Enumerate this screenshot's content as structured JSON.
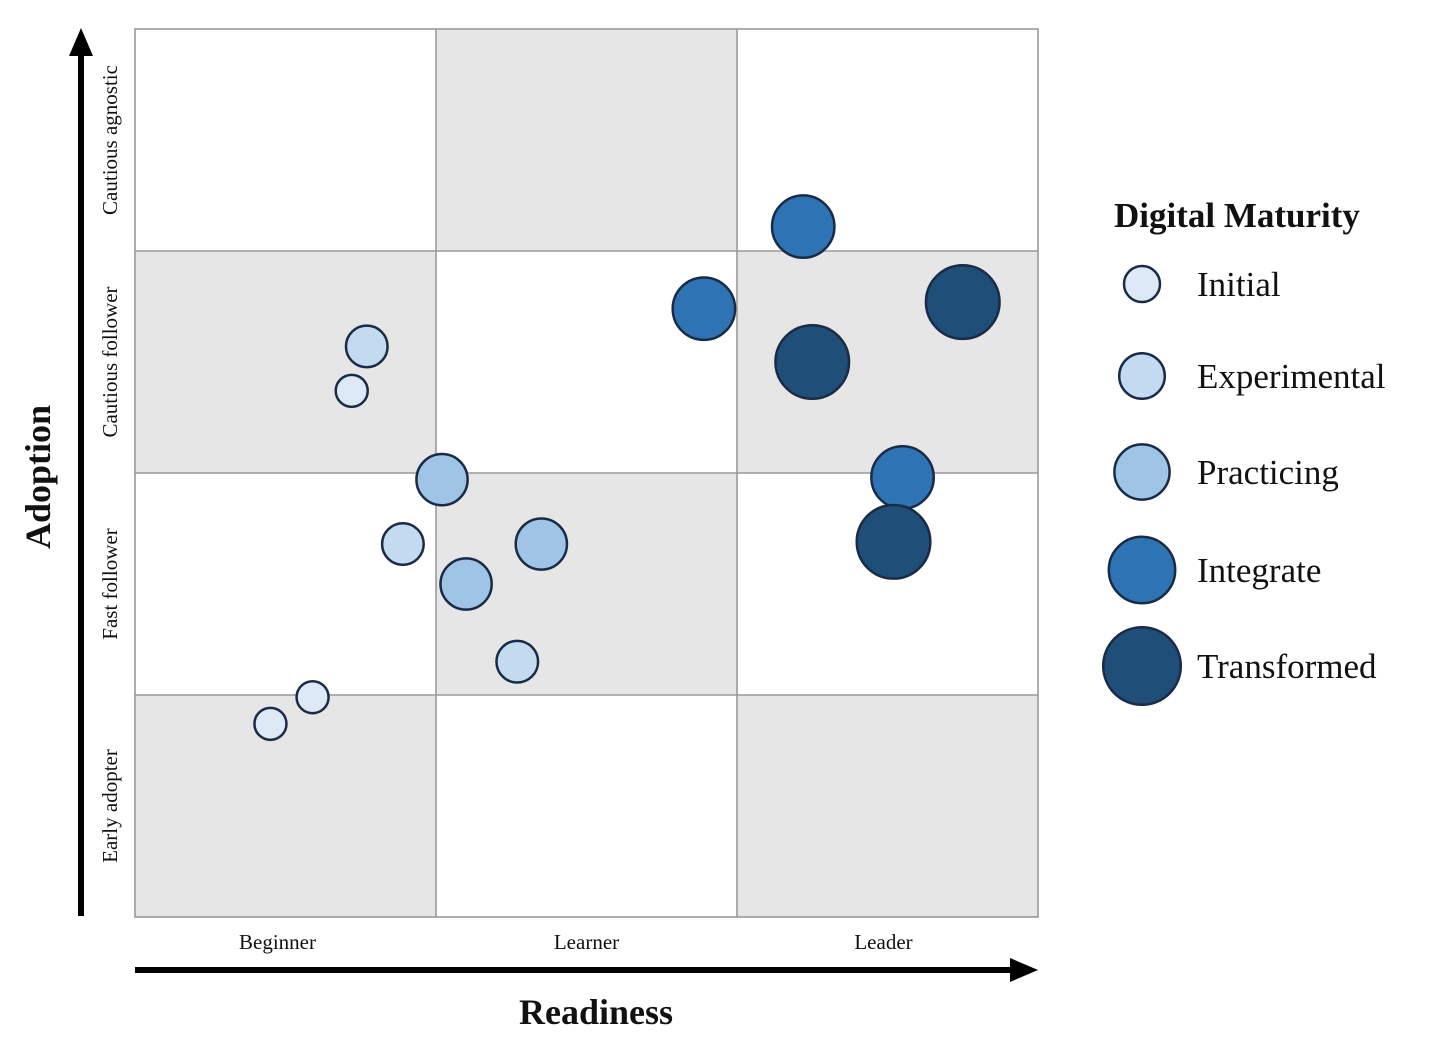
{
  "chart_data": {
    "type": "scatter",
    "subtype": "bubble-quadrant",
    "title": "",
    "xlabel": "Readiness",
    "ylabel": "Adoption",
    "x_categories": [
      "Beginner",
      "Learner",
      "Leader"
    ],
    "y_categories": [
      "Early adopter",
      "Fast follower",
      "Cautious follower",
      "Cautious agnostic"
    ],
    "xlim": [
      0,
      3
    ],
    "ylim": [
      0,
      4
    ],
    "grid": true,
    "cell_shading": {
      "shaded_color": "#e6e6e6",
      "plain_color": "#ffffff"
    },
    "legend": {
      "title": "Digital Maturity",
      "placement": "right"
    },
    "series": [
      {
        "name": "Initial",
        "color": "#dde9f6",
        "relative_size": 1,
        "points": [
          {
            "x": 0.72,
            "y": 2.37
          },
          {
            "x": 0.59,
            "y": 0.99
          },
          {
            "x": 0.45,
            "y": 0.87
          }
        ]
      },
      {
        "name": "Experimental",
        "color": "#c3daf0",
        "relative_size": 1.3,
        "points": [
          {
            "x": 0.77,
            "y": 2.57
          },
          {
            "x": 0.89,
            "y": 1.68
          },
          {
            "x": 1.27,
            "y": 1.15
          }
        ]
      },
      {
        "name": "Practicing",
        "color": "#a0c4e6",
        "relative_size": 1.6,
        "points": [
          {
            "x": 1.02,
            "y": 1.97
          },
          {
            "x": 1.35,
            "y": 1.68
          },
          {
            "x": 1.1,
            "y": 1.5
          }
        ]
      },
      {
        "name": "Integrate",
        "color": "#2e74b5",
        "relative_size": 1.95,
        "points": [
          {
            "x": 2.22,
            "y": 3.11
          },
          {
            "x": 1.89,
            "y": 2.74
          },
          {
            "x": 2.55,
            "y": 1.98
          }
        ]
      },
      {
        "name": "Transformed",
        "color": "#1f4e79",
        "relative_size": 2.3,
        "points": [
          {
            "x": 2.75,
            "y": 2.77
          },
          {
            "x": 2.25,
            "y": 2.5
          },
          {
            "x": 2.52,
            "y": 1.69
          }
        ]
      }
    ]
  }
}
